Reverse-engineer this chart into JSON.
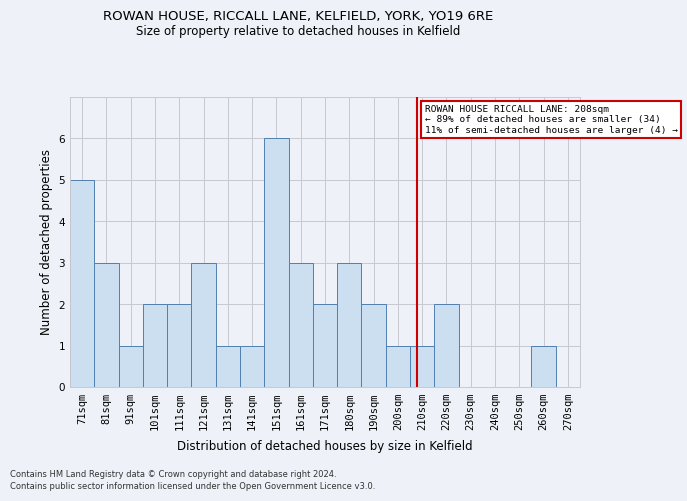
{
  "title": "ROWAN HOUSE, RICCALL LANE, KELFIELD, YORK, YO19 6RE",
  "subtitle": "Size of property relative to detached houses in Kelfield",
  "xlabel": "Distribution of detached houses by size in Kelfield",
  "ylabel": "Number of detached properties",
  "footer1": "Contains HM Land Registry data © Crown copyright and database right 2024.",
  "footer2": "Contains public sector information licensed under the Open Government Licence v3.0.",
  "categories": [
    "71sqm",
    "81sqm",
    "91sqm",
    "101sqm",
    "111sqm",
    "121sqm",
    "131sqm",
    "141sqm",
    "151sqm",
    "161sqm",
    "171sqm",
    "180sqm",
    "190sqm",
    "200sqm",
    "210sqm",
    "220sqm",
    "230sqm",
    "240sqm",
    "250sqm",
    "260sqm",
    "270sqm"
  ],
  "values": [
    5,
    3,
    1,
    2,
    2,
    3,
    1,
    1,
    6,
    3,
    2,
    3,
    2,
    1,
    1,
    2,
    0,
    0,
    0,
    1,
    0
  ],
  "bar_color": "#ccdff0",
  "bar_edge_color": "#5080b0",
  "grid_color": "#c8c8d0",
  "vline_color": "#cc0000",
  "annotation_text": "ROWAN HOUSE RICCALL LANE: 208sqm\n← 89% of detached houses are smaller (34)\n11% of semi-detached houses are larger (4) →",
  "annotation_box_color": "#ffffff",
  "annotation_box_edge": "#cc0000",
  "ylim": [
    0,
    7
  ],
  "yticks": [
    0,
    1,
    2,
    3,
    4,
    5,
    6
  ],
  "background_color": "#eef2f8",
  "title_fontsize": 9.5,
  "subtitle_fontsize": 8.5,
  "ylabel_fontsize": 8.5,
  "xlabel_fontsize": 8.5,
  "tick_fontsize": 7.5,
  "footer_fontsize": 6.0
}
